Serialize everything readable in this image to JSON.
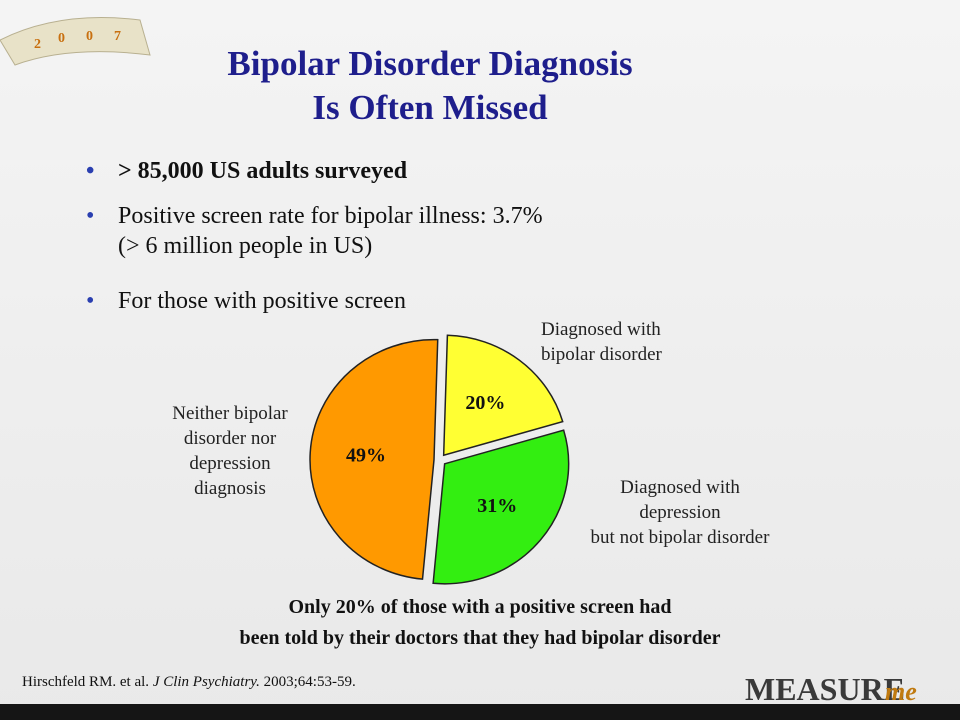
{
  "slide": {
    "title": [
      "Bipolar Disorder Diagnosis",
      "Is Often Missed"
    ],
    "bullets": [
      "> 85,000 US adults surveyed",
      "Positive screen rate for bipolar illness: 3.7%\n(> 6 million people in US)",
      "For those with positive screen"
    ],
    "caption": [
      "Only 20% of those with a positive screen had",
      "been told by their doctors that they had bipolar disorder"
    ],
    "footnote": [
      "Hirschfeld RM. et al. ",
      "J Clin Psychiatry.",
      " 2003;64:53-59."
    ],
    "tape": [
      "2",
      "0",
      "0",
      "7"
    ],
    "logo": [
      "MEASURE",
      "me"
    ]
  },
  "chart_data": {
    "type": "pie",
    "categories": [
      "Diagnosed with\nbipolar disorder",
      "Diagnosed with\ndepression\nbut not bipolar disorder",
      "Neither bipolar\ndisorder nor\ndepression\ndiagnosis"
    ],
    "values": [
      20,
      31,
      49
    ],
    "value_labels": [
      "20%",
      "31%",
      "49%"
    ],
    "colors": [
      "#ffff33",
      "#33ee11",
      "#ff9900"
    ]
  }
}
